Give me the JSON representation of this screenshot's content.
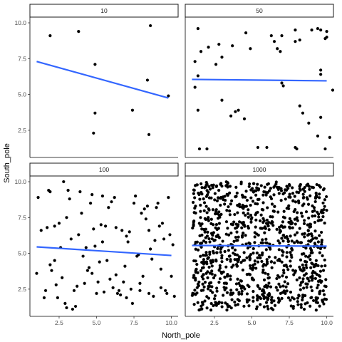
{
  "chart_data": {
    "type": "scatter",
    "xlabel": "North_pole",
    "ylabel": "South_pole",
    "x_ticks": [
      2.5,
      5.0,
      7.5,
      10.0
    ],
    "y_ticks": [
      2.5,
      5.0,
      7.5,
      10.0
    ],
    "xlim": [
      0.55,
      10.45
    ],
    "ylim": [
      0.6,
      10.4
    ],
    "fit_color": "#3366FF",
    "point_color": "#000000",
    "grid": false,
    "panels": [
      {
        "label": "10",
        "points": [
          [
            1.9,
            9.1
          ],
          [
            3.8,
            9.4
          ],
          [
            4.9,
            7.1
          ],
          [
            4.9,
            3.7
          ],
          [
            4.8,
            2.3
          ],
          [
            7.4,
            3.9
          ],
          [
            8.5,
            2.2
          ],
          [
            8.6,
            9.8
          ],
          [
            8.4,
            6.0
          ],
          [
            9.8,
            4.9
          ]
        ],
        "fit": [
          [
            1.0,
            7.3
          ],
          [
            9.8,
            4.75
          ]
        ]
      },
      {
        "label": "50",
        "points": [
          [
            1.2,
            5.5
          ],
          [
            1.2,
            7.3
          ],
          [
            1.4,
            9.6
          ],
          [
            1.4,
            6.3
          ],
          [
            1.6,
            8.0
          ],
          [
            1.4,
            3.9
          ],
          [
            1.5,
            1.2
          ],
          [
            2.0,
            1.2
          ],
          [
            2.1,
            8.3
          ],
          [
            2.8,
            8.5
          ],
          [
            2.6,
            7.1
          ],
          [
            3.0,
            7.6
          ],
          [
            3.0,
            4.6
          ],
          [
            3.6,
            3.5
          ],
          [
            3.9,
            3.8
          ],
          [
            4.1,
            3.9
          ],
          [
            3.7,
            8.4
          ],
          [
            4.5,
            3.3
          ],
          [
            4.9,
            8.2
          ],
          [
            4.6,
            9.3
          ],
          [
            5.4,
            1.3
          ],
          [
            6.0,
            1.3
          ],
          [
            6.3,
            9.1
          ],
          [
            6.5,
            8.7
          ],
          [
            6.7,
            8.2
          ],
          [
            6.9,
            8.0
          ],
          [
            7.0,
            5.8
          ],
          [
            7.1,
            5.6
          ],
          [
            7.0,
            9.1
          ],
          [
            7.9,
            9.5
          ],
          [
            7.9,
            8.7
          ],
          [
            8.2,
            8.8
          ],
          [
            7.9,
            1.3
          ],
          [
            8.0,
            1.2
          ],
          [
            8.2,
            4.2
          ],
          [
            8.4,
            3.7
          ],
          [
            8.8,
            3.0
          ],
          [
            9.0,
            9.5
          ],
          [
            9.4,
            9.6
          ],
          [
            9.6,
            9.5
          ],
          [
            9.6,
            6.7
          ],
          [
            9.6,
            6.4
          ],
          [
            9.4,
            2.1
          ],
          [
            9.6,
            3.4
          ],
          [
            9.9,
            8.9
          ],
          [
            10.0,
            9.4
          ],
          [
            9.9,
            1.2
          ],
          [
            10.2,
            2.0
          ],
          [
            10.4,
            5.3
          ],
          [
            10.0,
            9.0
          ]
        ],
        "fit": [
          [
            1.0,
            6.05
          ],
          [
            10.0,
            5.95
          ]
        ]
      },
      {
        "label": "100",
        "points": [
          [
            1.0,
            3.6
          ],
          [
            1.1,
            8.9
          ],
          [
            1.3,
            6.6
          ],
          [
            1.5,
            1.9
          ],
          [
            1.6,
            2.4
          ],
          [
            1.7,
            6.8
          ],
          [
            1.8,
            9.4
          ],
          [
            1.9,
            9.3
          ],
          [
            1.9,
            4.2
          ],
          [
            2.0,
            3.8
          ],
          [
            2.2,
            6.9
          ],
          [
            2.3,
            2.8
          ],
          [
            2.4,
            1.9
          ],
          [
            2.5,
            7.1
          ],
          [
            2.6,
            5.4
          ],
          [
            2.7,
            3.3
          ],
          [
            2.8,
            10.0
          ],
          [
            2.9,
            1.5
          ],
          [
            3.0,
            1.2
          ],
          [
            3.1,
            9.4
          ],
          [
            3.2,
            8.8
          ],
          [
            3.3,
            6.0
          ],
          [
            3.4,
            1.1
          ],
          [
            3.5,
            2.4
          ],
          [
            3.6,
            1.3
          ],
          [
            3.8,
            6.3
          ],
          [
            3.9,
            9.3
          ],
          [
            4.0,
            7.8
          ],
          [
            4.1,
            4.8
          ],
          [
            4.2,
            2.9
          ],
          [
            4.3,
            5.4
          ],
          [
            4.4,
            3.8
          ],
          [
            4.5,
            4.0
          ],
          [
            4.6,
            8.5
          ],
          [
            4.7,
            3.6
          ],
          [
            4.8,
            6.7
          ],
          [
            4.9,
            5.5
          ],
          [
            5.0,
            2.2
          ],
          [
            5.1,
            3.0
          ],
          [
            5.2,
            4.4
          ],
          [
            5.3,
            7.0
          ],
          [
            5.4,
            9.0
          ],
          [
            5.5,
            2.3
          ],
          [
            5.6,
            6.9
          ],
          [
            5.7,
            4.5
          ],
          [
            5.8,
            8.2
          ],
          [
            5.9,
            3.2
          ],
          [
            6.0,
            8.6
          ],
          [
            6.1,
            2.6
          ],
          [
            6.2,
            8.9
          ],
          [
            6.3,
            6.8
          ],
          [
            6.4,
            2.2
          ],
          [
            6.5,
            2.4
          ],
          [
            6.6,
            2.1
          ],
          [
            6.7,
            6.6
          ],
          [
            6.8,
            3.0
          ],
          [
            6.9,
            4.1
          ],
          [
            7.0,
            1.9
          ],
          [
            7.1,
            5.8
          ],
          [
            7.2,
            6.5
          ],
          [
            7.3,
            2.5
          ],
          [
            7.4,
            1.5
          ],
          [
            7.5,
            8.5
          ],
          [
            7.6,
            9.0
          ],
          [
            7.7,
            4.8
          ],
          [
            7.8,
            4.9
          ],
          [
            7.9,
            2.4
          ],
          [
            8.0,
            7.8
          ],
          [
            8.1,
            3.4
          ],
          [
            8.2,
            8.1
          ],
          [
            8.3,
            7.4
          ],
          [
            8.4,
            8.3
          ],
          [
            8.5,
            2.2
          ],
          [
            8.6,
            5.3
          ],
          [
            8.7,
            4.6
          ],
          [
            8.8,
            2.0
          ],
          [
            8.9,
            5.9
          ],
          [
            9.0,
            8.2
          ],
          [
            9.1,
            8.5
          ],
          [
            9.2,
            6.9
          ],
          [
            9.3,
            2.6
          ],
          [
            9.4,
            7.1
          ],
          [
            9.5,
            6.0
          ],
          [
            9.6,
            2.4
          ],
          [
            9.7,
            2.2
          ],
          [
            9.8,
            8.9
          ],
          [
            9.9,
            6.3
          ],
          [
            10.0,
            3.4
          ],
          [
            10.1,
            5.6
          ],
          [
            10.2,
            2.0
          ],
          [
            2.2,
            4.5
          ],
          [
            3.0,
            7.5
          ],
          [
            3.7,
            2.7
          ],
          [
            4.7,
            9.1
          ],
          [
            5.4,
            5.8
          ],
          [
            6.3,
            3.5
          ],
          [
            7.0,
            6.2
          ],
          [
            7.9,
            2.9
          ],
          [
            8.5,
            6.6
          ],
          [
            9.3,
            3.9
          ]
        ],
        "fit": [
          [
            1.0,
            5.45
          ],
          [
            10.0,
            4.85
          ]
        ]
      },
      {
        "label": "1000",
        "random_uniform_points": {
          "n": 1000,
          "seed": 1000,
          "x_range": [
            1.0,
            10.0
          ],
          "y_range": [
            1.0,
            10.0
          ]
        },
        "fit": [
          [
            1.0,
            5.55
          ],
          [
            10.0,
            5.5
          ]
        ]
      }
    ]
  }
}
